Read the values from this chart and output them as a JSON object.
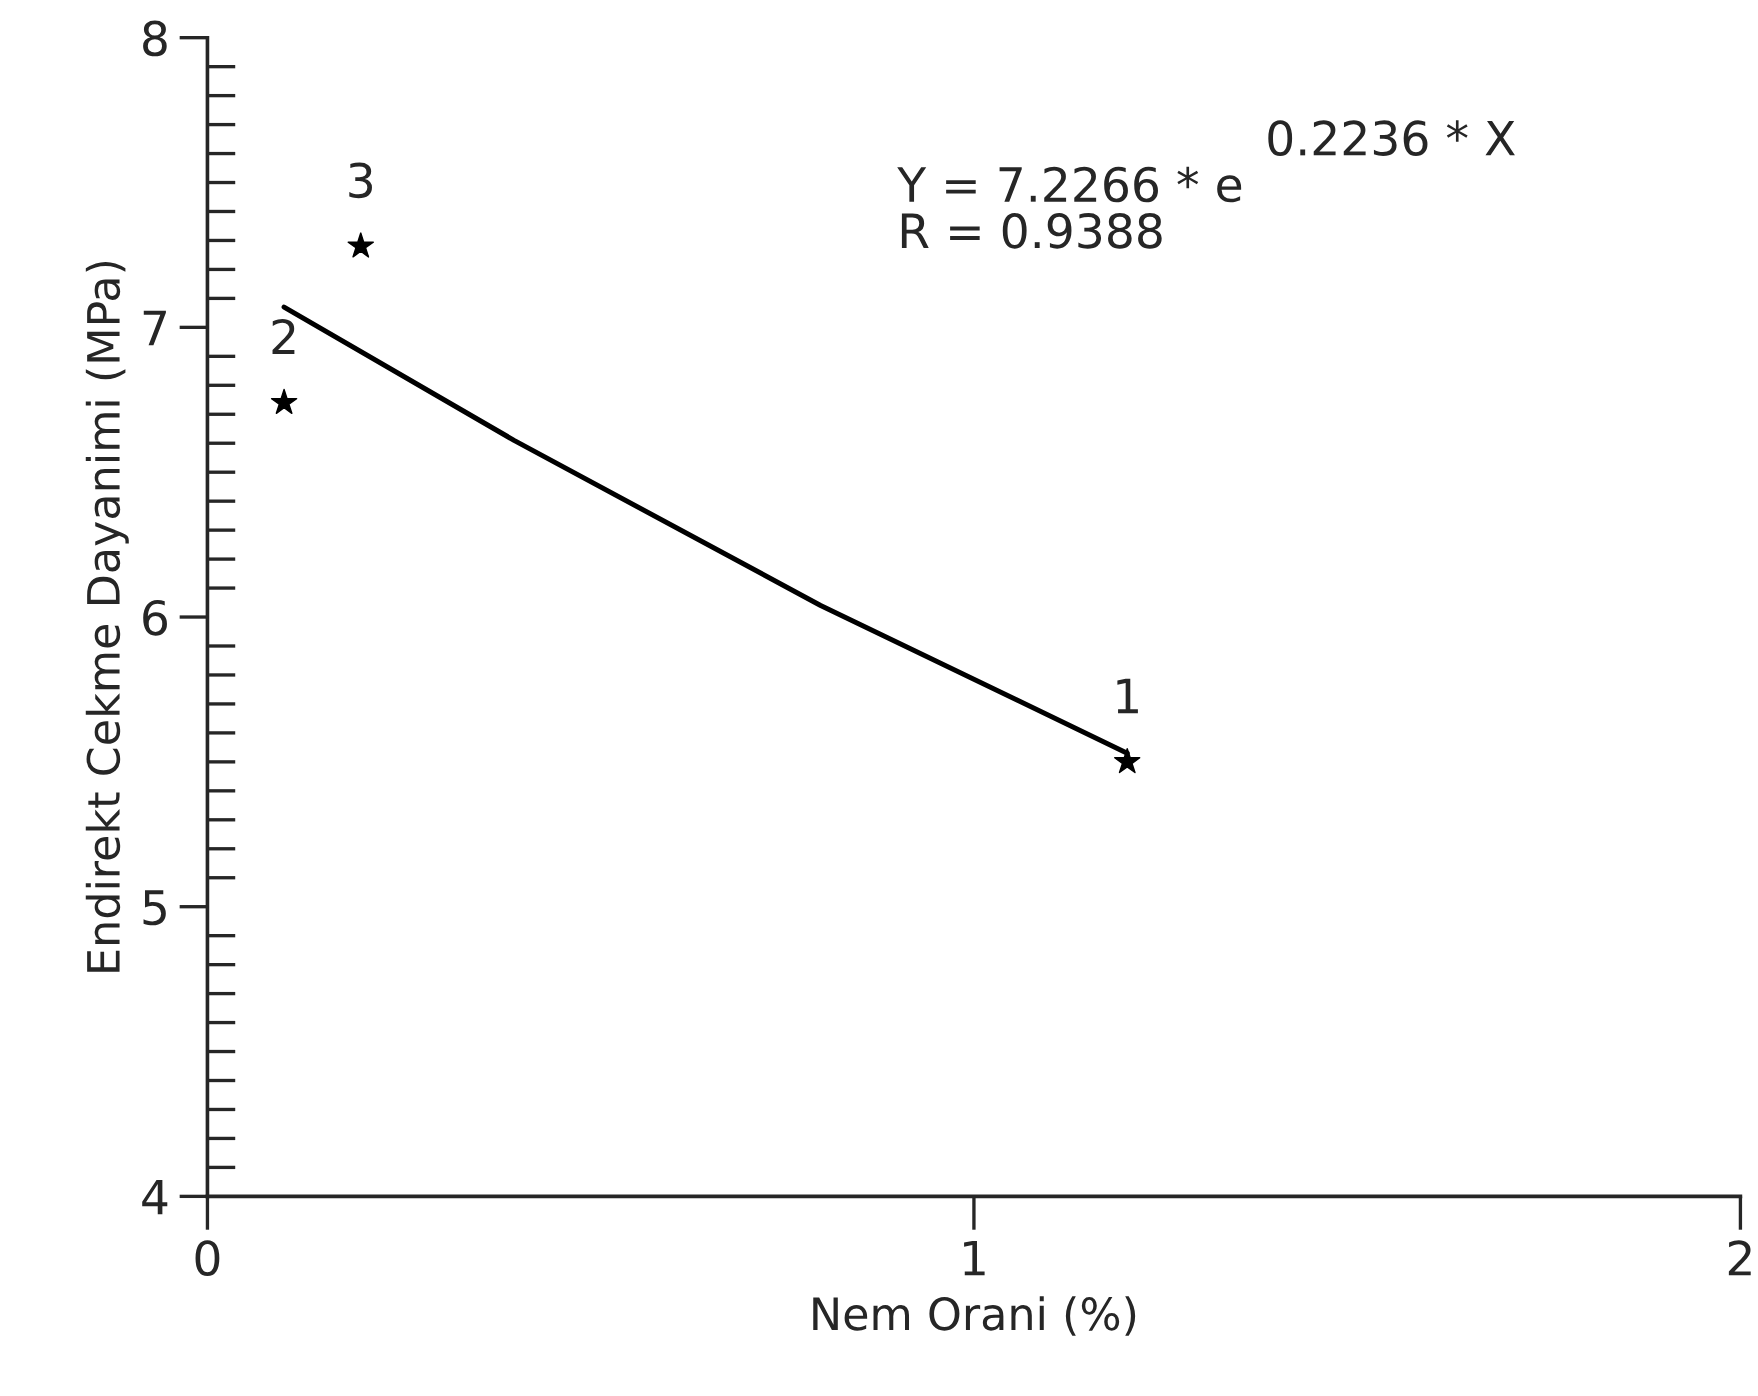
{
  "chart_data": {
    "type": "scatter",
    "xlabel": "Nem Orani (%)",
    "ylabel": "Endirekt Cekme Dayanimi (MPa)",
    "series": [
      {
        "color": "#000000",
        "marker": "star",
        "x": [
          1.2,
          0.1,
          0.2
        ],
        "values": [
          5.5,
          6.74,
          7.28
        ]
      },
      {
        "type": "line",
        "color": "#000000",
        "marker": "none",
        "line_style": "solid",
        "x": [
          0.1,
          0.4,
          0.8,
          1.2
        ],
        "values": [
          7.07,
          6.61,
          6.04,
          5.53
        ]
      }
    ],
    "annotations": [
      {
        "text": "1",
        "x": 1.2,
        "y": 5.5
      },
      {
        "text": "2",
        "x": 0.1,
        "y": 6.74
      },
      {
        "text": "3",
        "x": 0.2,
        "y": 7.28
      },
      "Y = 7.2266 * e",
      "0.2236 * X",
      "R = 0.9388"
    ],
    "xlim": [
      0,
      2
    ],
    "xticks": [
      0,
      1,
      2
    ],
    "ylim": [
      4,
      8
    ],
    "yticks": [
      4,
      5,
      6,
      7,
      8
    ],
    "grid": false,
    "legend": false
  }
}
